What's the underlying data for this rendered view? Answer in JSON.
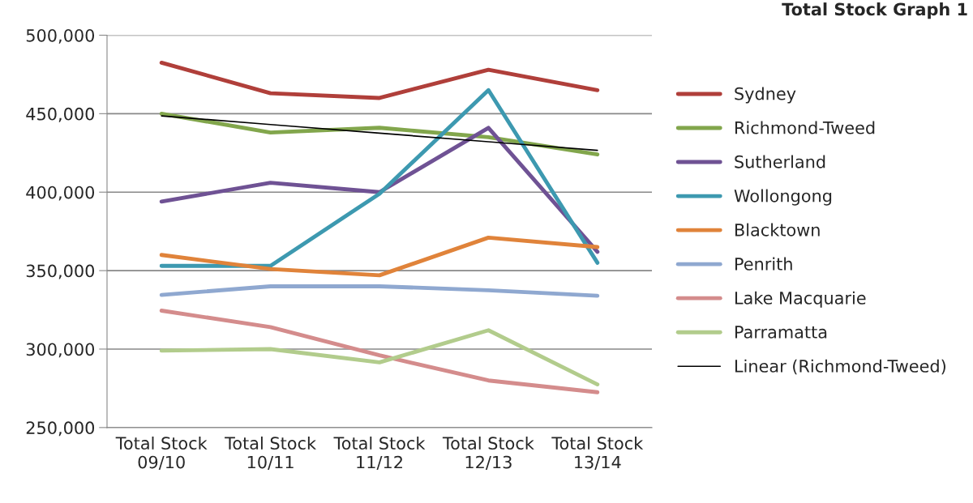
{
  "chart_data": {
    "type": "line",
    "title": "Total Stock Graph 1",
    "categories": [
      "Total Stock\n09/10",
      "Total Stock\n10/11",
      "Total Stock\n11/12",
      "Total Stock\n12/13",
      "Total Stock\n13/14"
    ],
    "series": [
      {
        "name": "Sydney",
        "color": "#b03f3a",
        "values": [
          482500,
          463000,
          460000,
          478000,
          465000
        ]
      },
      {
        "name": "Richmond-Tweed",
        "color": "#82a64c",
        "values": [
          450000,
          438000,
          441000,
          435000,
          424000
        ]
      },
      {
        "name": "Sutherland",
        "color": "#6f5294",
        "values": [
          394000,
          406000,
          400000,
          441000,
          362000
        ]
      },
      {
        "name": "Wollongong",
        "color": "#3d99b0",
        "values": [
          353000,
          353000,
          399000,
          465000,
          355000
        ]
      },
      {
        "name": "Blacktown",
        "color": "#e0833a",
        "values": [
          360000,
          351000,
          347000,
          371000,
          365000
        ]
      },
      {
        "name": "Penrith",
        "color": "#8fa8d0",
        "values": [
          334500,
          340000,
          340000,
          337500,
          334000
        ]
      },
      {
        "name": "Lake Macquarie",
        "color": "#d48c8c",
        "values": [
          324500,
          314000,
          296000,
          280000,
          272500
        ]
      },
      {
        "name": "Parramatta",
        "color": "#b2cc8c",
        "values": [
          299000,
          300000,
          291500,
          312000,
          277500
        ]
      },
      {
        "name": "Linear (Richmond-Tweed)",
        "color": "#000000",
        "type": "line",
        "values": [
          448600,
          443100,
          437600,
          432100,
          426600
        ]
      }
    ],
    "ylim": [
      250000,
      500000
    ],
    "yticks": [
      {
        "value": 250000,
        "label": "250,000"
      },
      {
        "value": 300000,
        "label": "300,000"
      },
      {
        "value": 350000,
        "label": "350,000"
      },
      {
        "value": 400000,
        "label": "400,000"
      },
      {
        "value": 450000,
        "label": "450,000"
      },
      {
        "value": 500000,
        "label": "500,000"
      }
    ],
    "grid": "y",
    "legend": "right",
    "marker": "none",
    "line_style": "solid"
  }
}
